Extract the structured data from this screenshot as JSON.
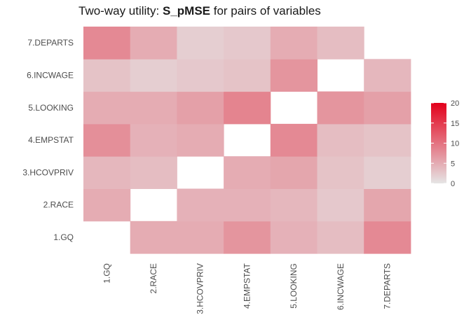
{
  "chart_data": {
    "type": "heatmap",
    "title_prefix": "Two-way utility: ",
    "title_bold": "S_pMSE",
    "title_suffix": " for pairs of variables",
    "x_categories": [
      "1.GQ",
      "2.RACE",
      "3.HCOVPRIV",
      "4.EMPSTAT",
      "5.LOOKING",
      "6.INCWAGE",
      "7.DEPARTS"
    ],
    "y_categories": [
      "1.GQ",
      "2.RACE",
      "3.HCOVPRIV",
      "4.EMPSTAT",
      "5.LOOKING",
      "6.INCWAGE",
      "7.DEPARTS"
    ],
    "cells": [
      {
        "x": "2.RACE",
        "y": "1.GQ",
        "value": 5
      },
      {
        "x": "3.HCOVPRIV",
        "y": "1.GQ",
        "value": 5
      },
      {
        "x": "4.EMPSTAT",
        "y": "1.GQ",
        "value": 7
      },
      {
        "x": "5.LOOKING",
        "y": "1.GQ",
        "value": 4.5
      },
      {
        "x": "6.INCWAGE",
        "y": "1.GQ",
        "value": 3.5
      },
      {
        "x": "7.DEPARTS",
        "y": "1.GQ",
        "value": 8
      },
      {
        "x": "1.GQ",
        "y": "2.RACE",
        "value": 5
      },
      {
        "x": "3.HCOVPRIV",
        "y": "2.RACE",
        "value": 4.5
      },
      {
        "x": "4.EMPSTAT",
        "y": "2.RACE",
        "value": 4.5
      },
      {
        "x": "5.LOOKING",
        "y": "2.RACE",
        "value": 4
      },
      {
        "x": "6.INCWAGE",
        "y": "2.RACE",
        "value": 2.5
      },
      {
        "x": "7.DEPARTS",
        "y": "2.RACE",
        "value": 5.5
      },
      {
        "x": "1.GQ",
        "y": "3.HCOVPRIV",
        "value": 4
      },
      {
        "x": "2.RACE",
        "y": "3.HCOVPRIV",
        "value": 3.5
      },
      {
        "x": "4.EMPSTAT",
        "y": "3.HCOVPRIV",
        "value": 5
      },
      {
        "x": "5.LOOKING",
        "y": "3.HCOVPRIV",
        "value": 5.5
      },
      {
        "x": "6.INCWAGE",
        "y": "3.HCOVPRIV",
        "value": 3
      },
      {
        "x": "7.DEPARTS",
        "y": "3.HCOVPRIV",
        "value": 2
      },
      {
        "x": "1.GQ",
        "y": "4.EMPSTAT",
        "value": 7.5
      },
      {
        "x": "2.RACE",
        "y": "4.EMPSTAT",
        "value": 4.5
      },
      {
        "x": "3.HCOVPRIV",
        "y": "4.EMPSTAT",
        "value": 5
      },
      {
        "x": "5.LOOKING",
        "y": "4.EMPSTAT",
        "value": 8
      },
      {
        "x": "6.INCWAGE",
        "y": "4.EMPSTAT",
        "value": 3.5
      },
      {
        "x": "7.DEPARTS",
        "y": "4.EMPSTAT",
        "value": 3
      },
      {
        "x": "1.GQ",
        "y": "5.LOOKING",
        "value": 5
      },
      {
        "x": "2.RACE",
        "y": "5.LOOKING",
        "value": 5
      },
      {
        "x": "3.HCOVPRIV",
        "y": "5.LOOKING",
        "value": 6
      },
      {
        "x": "4.EMPSTAT",
        "y": "5.LOOKING",
        "value": 8.5
      },
      {
        "x": "6.INCWAGE",
        "y": "5.LOOKING",
        "value": 7
      },
      {
        "x": "7.DEPARTS",
        "y": "5.LOOKING",
        "value": 6
      },
      {
        "x": "1.GQ",
        "y": "6.INCWAGE",
        "value": 3
      },
      {
        "x": "2.RACE",
        "y": "6.INCWAGE",
        "value": 2
      },
      {
        "x": "3.HCOVPRIV",
        "y": "6.INCWAGE",
        "value": 2.5
      },
      {
        "x": "4.EMPSTAT",
        "y": "6.INCWAGE",
        "value": 3
      },
      {
        "x": "5.LOOKING",
        "y": "6.INCWAGE",
        "value": 7
      },
      {
        "x": "7.DEPARTS",
        "y": "6.INCWAGE",
        "value": 4
      },
      {
        "x": "1.GQ",
        "y": "7.DEPARTS",
        "value": 8
      },
      {
        "x": "2.RACE",
        "y": "7.DEPARTS",
        "value": 5
      },
      {
        "x": "3.HCOVPRIV",
        "y": "7.DEPARTS",
        "value": 2
      },
      {
        "x": "4.EMPSTAT",
        "y": "7.DEPARTS",
        "value": 2.5
      },
      {
        "x": "5.LOOKING",
        "y": "7.DEPARTS",
        "value": 5
      },
      {
        "x": "6.INCWAGE",
        "y": "7.DEPARTS",
        "value": 3.5
      }
    ],
    "legend": {
      "ticks": [
        0,
        5,
        10,
        15,
        20
      ],
      "range": [
        0,
        20
      ],
      "low_color": "#e5e5e5",
      "high_color": "#e3001b",
      "placement": "right"
    }
  }
}
